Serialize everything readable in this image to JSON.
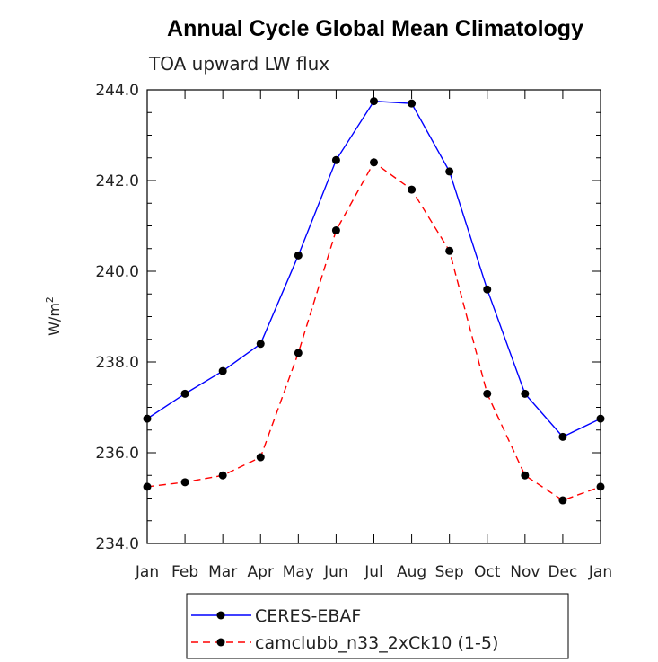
{
  "chart_data": {
    "type": "line",
    "title": "Annual Cycle Global Mean Climatology",
    "subtitle": "TOA upward LW flux",
    "ylabel": "W/m",
    "ylabel_sup": "2",
    "ylim": [
      234,
      244
    ],
    "yticks": [
      "234.0",
      "236.0",
      "238.0",
      "240.0",
      "242.0",
      "244.0"
    ],
    "categories": [
      "Jan",
      "Feb",
      "Mar",
      "Apr",
      "May",
      "Jun",
      "Jul",
      "Aug",
      "Sep",
      "Oct",
      "Nov",
      "Dec",
      "Jan"
    ],
    "series": [
      {
        "name": "CERES-EBAF",
        "color": "#0000ff",
        "dashed": false,
        "values": [
          236.75,
          237.3,
          237.8,
          238.4,
          240.35,
          242.45,
          243.75,
          243.7,
          242.2,
          239.6,
          237.3,
          236.35,
          236.75
        ]
      },
      {
        "name": "camclubb_n33_2xCk10 (1-5)",
        "color": "#ff0000",
        "dashed": true,
        "values": [
          235.25,
          235.35,
          235.5,
          235.9,
          238.2,
          240.9,
          242.4,
          241.8,
          240.45,
          237.3,
          235.5,
          234.95,
          235.25
        ]
      }
    ],
    "grid": false,
    "legend_position": "bottom"
  }
}
